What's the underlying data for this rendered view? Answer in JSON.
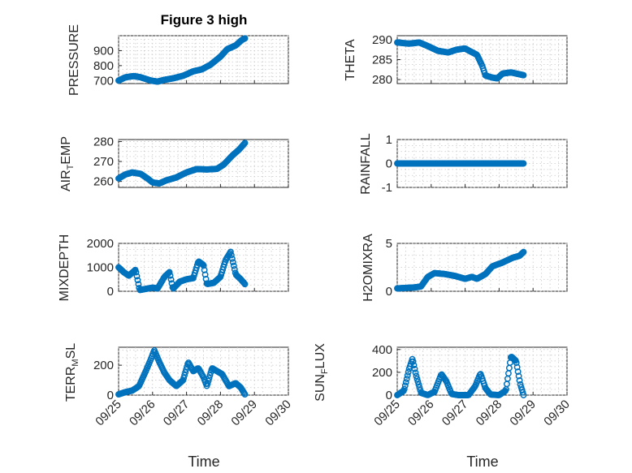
{
  "figure": {
    "title": "Figure 3 high",
    "xlabel": "Time",
    "series_color": "#0072BD",
    "marker": "circle"
  },
  "chart_data": [
    {
      "type": "scatter",
      "ylabel": "PRESSURE",
      "ylim": [
        680,
        1000
      ],
      "yticks": [
        700,
        800,
        900
      ],
      "ytick_labels": [
        "700",
        "800",
        "900"
      ],
      "xlim": [
        0,
        5
      ],
      "xtick_labels": [
        "09/25",
        "09/26",
        "09/27",
        "09/28",
        "09/29",
        "09/30"
      ],
      "knots": [
        [
          0,
          700
        ],
        [
          0.2,
          722
        ],
        [
          0.45,
          730
        ],
        [
          0.65,
          722
        ],
        [
          0.95,
          700
        ],
        [
          1.15,
          693
        ],
        [
          1.35,
          705
        ],
        [
          1.6,
          715
        ],
        [
          1.9,
          732
        ],
        [
          2.2,
          762
        ],
        [
          2.45,
          775
        ],
        [
          2.7,
          805
        ],
        [
          3.0,
          860
        ],
        [
          3.2,
          910
        ],
        [
          3.45,
          935
        ],
        [
          3.62,
          970
        ],
        [
          3.72,
          982
        ]
      ]
    },
    {
      "type": "scatter",
      "ylabel": "THETA",
      "ylim": [
        279,
        291
      ],
      "yticks": [
        280,
        285,
        290
      ],
      "ytick_labels": [
        "280",
        "285",
        "290"
      ],
      "xlim": [
        0,
        5
      ],
      "xtick_labels": [
        "09/25",
        "09/26",
        "09/27",
        "09/28",
        "09/29",
        "09/30"
      ],
      "knots": [
        [
          0,
          289.3
        ],
        [
          0.35,
          289
        ],
        [
          0.55,
          289.2
        ],
        [
          0.65,
          289.3
        ],
        [
          0.9,
          288.4
        ],
        [
          1.2,
          287.2
        ],
        [
          1.5,
          286.8
        ],
        [
          1.75,
          287.5
        ],
        [
          2.0,
          287.8
        ],
        [
          2.1,
          287.3
        ],
        [
          2.35,
          286.2
        ],
        [
          2.5,
          283.5
        ],
        [
          2.6,
          281
        ],
        [
          2.8,
          280.5
        ],
        [
          2.95,
          280.3
        ],
        [
          3.1,
          281.5
        ],
        [
          3.35,
          281.8
        ],
        [
          3.72,
          281.1
        ]
      ]
    },
    {
      "type": "scatter",
      "ylabel": "AIR_TEMP",
      "ylim": [
        257,
        281
      ],
      "yticks": [
        260,
        270,
        280
      ],
      "ytick_labels": [
        "260",
        "270",
        "280"
      ],
      "xlim": [
        0,
        5
      ],
      "xtick_labels": [
        "09/25",
        "09/26",
        "09/27",
        "09/28",
        "09/29",
        "09/30"
      ],
      "knots": [
        [
          0,
          261.5
        ],
        [
          0.2,
          263.5
        ],
        [
          0.4,
          264.5
        ],
        [
          0.65,
          263.8
        ],
        [
          0.85,
          261.5
        ],
        [
          1.0,
          259.5
        ],
        [
          1.2,
          259
        ],
        [
          1.4,
          260.5
        ],
        [
          1.7,
          262
        ],
        [
          2.0,
          264.5
        ],
        [
          2.3,
          266.2
        ],
        [
          2.6,
          266
        ],
        [
          2.9,
          266.3
        ],
        [
          3.1,
          268.5
        ],
        [
          3.35,
          273
        ],
        [
          3.55,
          276
        ],
        [
          3.72,
          279.3
        ]
      ]
    },
    {
      "type": "scatter",
      "ylabel": "RAINFALL",
      "ylim": [
        -1,
        1
      ],
      "yticks": [
        -1,
        0,
        1
      ],
      "ytick_labels": [
        "-1",
        "0",
        "1"
      ],
      "xlim": [
        0,
        5
      ],
      "xtick_labels": [
        "09/25",
        "09/26",
        "09/27",
        "09/28",
        "09/29",
        "09/30"
      ],
      "knots": [
        [
          0,
          0
        ],
        [
          3.72,
          0
        ]
      ]
    },
    {
      "type": "scatter",
      "ylabel": "MIXDEPTH",
      "ylim": [
        0,
        2000
      ],
      "yticks": [
        0,
        1000,
        2000
      ],
      "ytick_labels": [
        "0",
        "1000",
        "2000"
      ],
      "xlim": [
        0,
        5
      ],
      "xtick_labels": [
        "09/25",
        "09/26",
        "09/27",
        "09/28",
        "09/29",
        "09/30"
      ],
      "knots": [
        [
          0,
          1000
        ],
        [
          0.15,
          800
        ],
        [
          0.3,
          650
        ],
        [
          0.5,
          900
        ],
        [
          0.62,
          50
        ],
        [
          0.8,
          100
        ],
        [
          1.0,
          150
        ],
        [
          1.15,
          120
        ],
        [
          1.35,
          600
        ],
        [
          1.5,
          800
        ],
        [
          1.6,
          100
        ],
        [
          1.8,
          400
        ],
        [
          2.0,
          500
        ],
        [
          2.2,
          550
        ],
        [
          2.35,
          1250
        ],
        [
          2.5,
          1100
        ],
        [
          2.6,
          300
        ],
        [
          2.8,
          350
        ],
        [
          3.0,
          600
        ],
        [
          3.15,
          1300
        ],
        [
          3.3,
          1650
        ],
        [
          3.45,
          700
        ],
        [
          3.6,
          500
        ],
        [
          3.72,
          300
        ]
      ]
    },
    {
      "type": "scatter",
      "ylabel": "H2OMIXRA",
      "ylim": [
        0,
        5
      ],
      "yticks": [
        0,
        5
      ],
      "ytick_labels": [
        "0",
        "5"
      ],
      "xlim": [
        0,
        5
      ],
      "xtick_labels": [
        "09/25",
        "09/26",
        "09/27",
        "09/28",
        "09/29",
        "09/30"
      ],
      "knots": [
        [
          0,
          0.3
        ],
        [
          0.5,
          0.4
        ],
        [
          0.7,
          0.5
        ],
        [
          0.9,
          1.5
        ],
        [
          1.1,
          1.9
        ],
        [
          1.4,
          1.8
        ],
        [
          1.7,
          1.6
        ],
        [
          2.0,
          1.3
        ],
        [
          2.2,
          1.5
        ],
        [
          2.35,
          1.3
        ],
        [
          2.6,
          1.8
        ],
        [
          2.8,
          2.6
        ],
        [
          3.1,
          3.0
        ],
        [
          3.4,
          3.5
        ],
        [
          3.6,
          3.7
        ],
        [
          3.72,
          4.1
        ]
      ]
    },
    {
      "type": "scatter",
      "ylabel": "TERR_MSL",
      "ylim": [
        0,
        320
      ],
      "yticks": [
        0,
        200
      ],
      "ytick_labels": [
        "0",
        "200"
      ],
      "xlim": [
        0,
        5
      ],
      "xtick_labels": [
        "09/25",
        "09/26",
        "09/27",
        "09/28",
        "09/29",
        "09/30"
      ],
      "knots": [
        [
          0,
          5
        ],
        [
          0.2,
          20
        ],
        [
          0.4,
          30
        ],
        [
          0.6,
          60
        ],
        [
          0.8,
          160
        ],
        [
          0.95,
          240
        ],
        [
          1.05,
          300
        ],
        [
          1.2,
          220
        ],
        [
          1.35,
          150
        ],
        [
          1.5,
          100
        ],
        [
          1.7,
          60
        ],
        [
          1.9,
          100
        ],
        [
          2.05,
          220
        ],
        [
          2.2,
          160
        ],
        [
          2.35,
          180
        ],
        [
          2.5,
          120
        ],
        [
          2.6,
          60
        ],
        [
          2.75,
          180
        ],
        [
          2.9,
          160
        ],
        [
          3.05,
          140
        ],
        [
          3.25,
          60
        ],
        [
          3.45,
          80
        ],
        [
          3.6,
          50
        ],
        [
          3.72,
          5
        ]
      ]
    },
    {
      "type": "scatter",
      "ylabel": "SUN_FLUX",
      "ylim": [
        0,
        420
      ],
      "yticks": [
        0,
        200,
        400
      ],
      "ytick_labels": [
        "0",
        "200",
        "400"
      ],
      "xlim": [
        0,
        5
      ],
      "xtick_labels": [
        "09/25",
        "09/26",
        "09/27",
        "09/28",
        "09/29",
        "09/30"
      ],
      "knots": [
        [
          0,
          0
        ],
        [
          0.2,
          40
        ],
        [
          0.35,
          230
        ],
        [
          0.45,
          320
        ],
        [
          0.55,
          180
        ],
        [
          0.7,
          20
        ],
        [
          0.9,
          0
        ],
        [
          1.1,
          30
        ],
        [
          1.3,
          185
        ],
        [
          1.45,
          120
        ],
        [
          1.6,
          10
        ],
        [
          1.8,
          0
        ],
        [
          2.1,
          0
        ],
        [
          2.3,
          80
        ],
        [
          2.45,
          190
        ],
        [
          2.6,
          60
        ],
        [
          2.75,
          5
        ],
        [
          3.0,
          0
        ],
        [
          3.2,
          40
        ],
        [
          3.35,
          340
        ],
        [
          3.5,
          300
        ],
        [
          3.62,
          100
        ],
        [
          3.72,
          0
        ]
      ]
    }
  ]
}
